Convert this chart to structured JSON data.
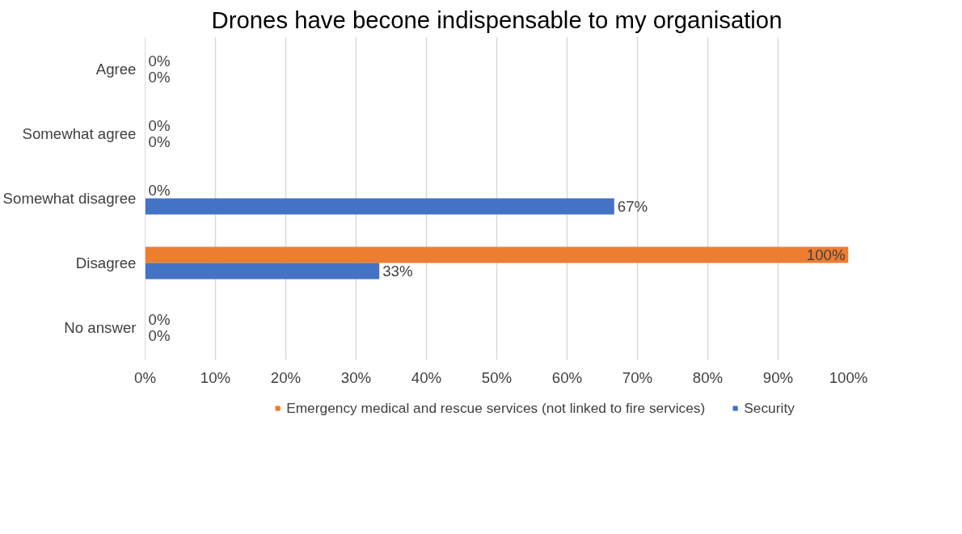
{
  "chart_data": {
    "type": "bar",
    "orientation": "horizontal",
    "title": "Drones have becone indispensable to my organisation",
    "categories": [
      "Agree",
      "Somewhat agree",
      "Somewhat disagree",
      "Disagree",
      "No answer"
    ],
    "series": [
      {
        "name": "Emergency medical and rescue services (not linked to fire services)",
        "color": "#ed7d31",
        "values": [
          0,
          0,
          0,
          100,
          0
        ],
        "value_labels": [
          "0%",
          "0%",
          "0%",
          "100%",
          "0%"
        ]
      },
      {
        "name": "Security",
        "color": "#4472c4",
        "values": [
          0,
          0,
          66.7,
          33.3,
          0
        ],
        "value_labels": [
          "0%",
          "0%",
          "67%",
          "33%",
          "0%"
        ]
      }
    ],
    "xlim": [
      0,
      100
    ],
    "xticks": [
      {
        "value": 0,
        "label": "0%"
      },
      {
        "value": 10,
        "label": "10%"
      },
      {
        "value": 20,
        "label": "20%"
      },
      {
        "value": 30,
        "label": "30%"
      },
      {
        "value": 40,
        "label": "40%"
      },
      {
        "value": 50,
        "label": "50%"
      },
      {
        "value": 60,
        "label": "60%"
      },
      {
        "value": 70,
        "label": "70%"
      },
      {
        "value": 80,
        "label": "80%"
      },
      {
        "value": 90,
        "label": "90%"
      },
      {
        "value": 100,
        "label": "100%"
      }
    ],
    "grid": "x",
    "legend": "bottom"
  }
}
